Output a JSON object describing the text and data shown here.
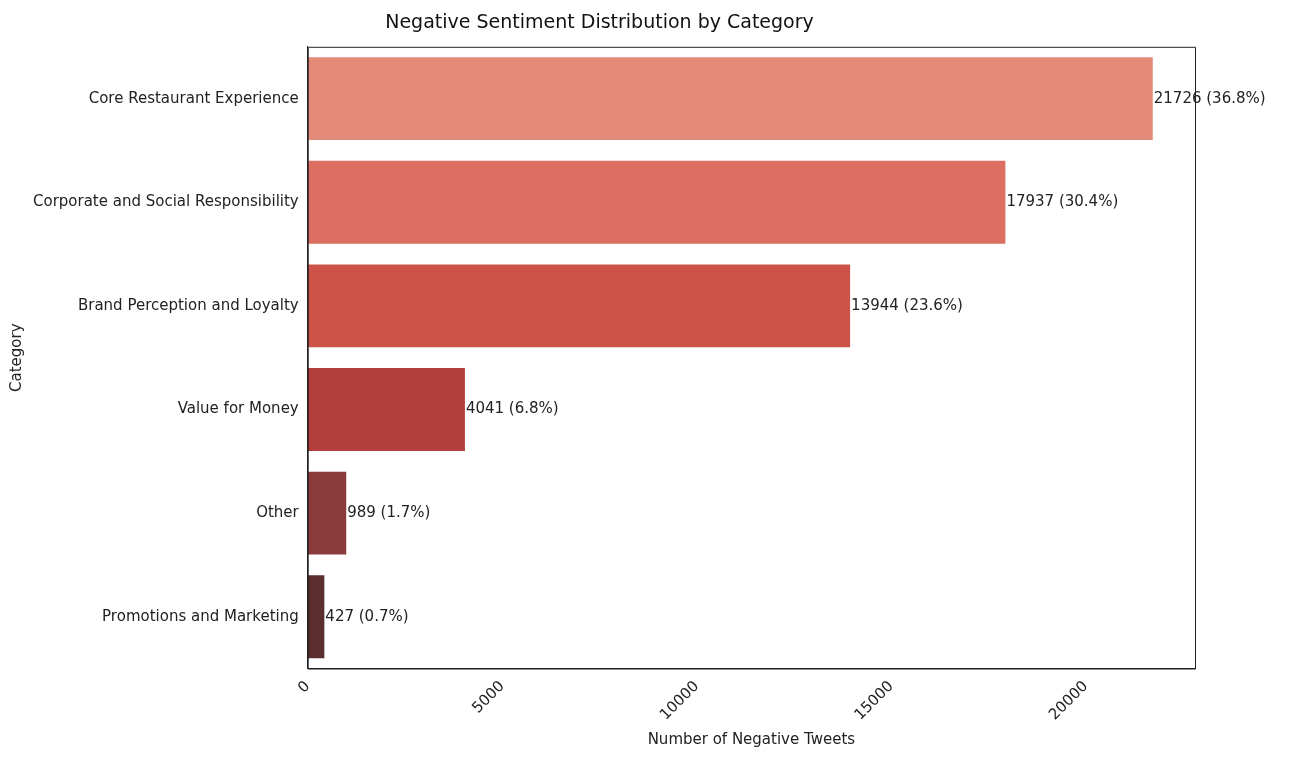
{
  "chart_data": {
    "type": "bar",
    "orientation": "horizontal",
    "title": "Negative Sentiment Distribution by Category",
    "xlabel": "Number of Negative Tweets",
    "ylabel": "Category",
    "categories": [
      "Core Restaurant Experience",
      "Corporate and Social Responsibility",
      "Brand Perception and Loyalty",
      "Value for Money",
      "Other",
      "Promotions and Marketing"
    ],
    "values": [
      21726,
      17937,
      13944,
      4041,
      989,
      427
    ],
    "colors": [
      "#e38b78",
      "#dc6f62",
      "#cd5349",
      "#b43e3b",
      "#8a3a3a",
      "#5a2e2e"
    ],
    "value_labels": [
      "21726 (36.8%)",
      "17937 (30.4%)",
      "13944 (23.6%)",
      "4041 (6.8%)",
      "989 (1.7%)",
      "427 (0.7%)"
    ],
    "xlim": [
      0,
      22812
    ],
    "xticks": [
      0,
      5000,
      10000,
      15000,
      20000
    ],
    "grid": false,
    "legend": false
  }
}
